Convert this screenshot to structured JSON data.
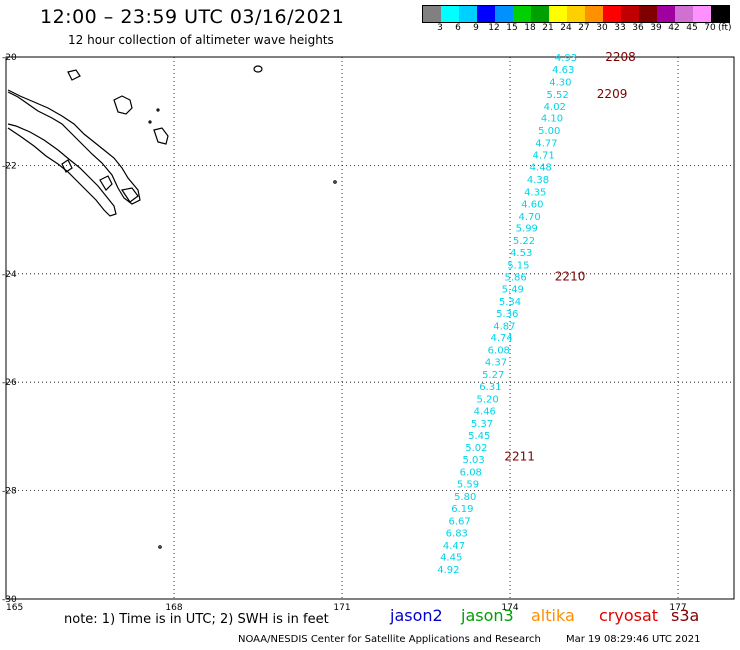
{
  "header": {
    "title": "12:00 – 23:59 UTC 03/16/2021",
    "subtitle": "12 hour collection of altimeter wave heights"
  },
  "colorbar": {
    "colors": [
      "#808080",
      "#00ffff",
      "#00d0ff",
      "#0000ff",
      "#0090ff",
      "#00d000",
      "#00a000",
      "#ffff00",
      "#ffd000",
      "#ff9000",
      "#ff0000",
      "#c00000",
      "#800000",
      "#a000a0",
      "#d070d0",
      "#ff90ff",
      "#000000"
    ],
    "labels": [
      "3",
      "6",
      "9",
      "12",
      "15",
      "18",
      "21",
      "24",
      "27",
      "30",
      "33",
      "36",
      "39",
      "42",
      "45",
      "70"
    ],
    "unit": "(ft)"
  },
  "map": {
    "lon_range": [
      165,
      178
    ],
    "lat_range": [
      -30,
      -20
    ],
    "lat_ticks": [
      {
        "value": -20,
        "label": "-20"
      },
      {
        "value": -22,
        "label": "-22"
      },
      {
        "value": -24,
        "label": "-24"
      },
      {
        "value": -26,
        "label": "-26"
      },
      {
        "value": -28,
        "label": "-28"
      },
      {
        "value": -30,
        "label": "-30"
      }
    ],
    "lon_ticks": [
      {
        "value": 165,
        "label": "165"
      },
      {
        "value": 168,
        "label": "168"
      },
      {
        "value": 171,
        "label": "171"
      },
      {
        "value": 174,
        "label": "174"
      },
      {
        "value": 177,
        "label": "177"
      }
    ],
    "measurements": [
      {
        "lon": 175.0,
        "lat": -20.0,
        "value": "4.93"
      },
      {
        "lon": 174.95,
        "lat": -20.22,
        "value": "4.63"
      },
      {
        "lon": 174.9,
        "lat": -20.45,
        "value": "4.30"
      },
      {
        "lon": 174.85,
        "lat": -20.68,
        "value": "5.52"
      },
      {
        "lon": 174.8,
        "lat": -20.9,
        "value": "4.02"
      },
      {
        "lon": 174.75,
        "lat": -21.12,
        "value": "4.10"
      },
      {
        "lon": 174.7,
        "lat": -21.35,
        "value": "5.00"
      },
      {
        "lon": 174.65,
        "lat": -21.58,
        "value": "4.77"
      },
      {
        "lon": 174.6,
        "lat": -21.8,
        "value": "4.71"
      },
      {
        "lon": 174.55,
        "lat": -22.02,
        "value": "4.48"
      },
      {
        "lon": 174.5,
        "lat": -22.25,
        "value": "4.38"
      },
      {
        "lon": 174.45,
        "lat": -22.48,
        "value": "4.35"
      },
      {
        "lon": 174.4,
        "lat": -22.7,
        "value": "4.60"
      },
      {
        "lon": 174.35,
        "lat": -22.93,
        "value": "4.70"
      },
      {
        "lon": 174.3,
        "lat": -23.15,
        "value": "5.99"
      },
      {
        "lon": 174.25,
        "lat": -23.38,
        "value": "5.22"
      },
      {
        "lon": 174.2,
        "lat": -23.6,
        "value": "4.53"
      },
      {
        "lon": 174.15,
        "lat": -23.83,
        "value": "5.15"
      },
      {
        "lon": 174.1,
        "lat": -24.05,
        "value": "5.86"
      },
      {
        "lon": 174.05,
        "lat": -24.27,
        "value": "5.49"
      },
      {
        "lon": 174.0,
        "lat": -24.5,
        "value": "5.34"
      },
      {
        "lon": 173.95,
        "lat": -24.72,
        "value": "5.36"
      },
      {
        "lon": 173.9,
        "lat": -24.95,
        "value": "4.87"
      },
      {
        "lon": 173.85,
        "lat": -25.17,
        "value": "4.74"
      },
      {
        "lon": 173.8,
        "lat": -25.4,
        "value": "6.08"
      },
      {
        "lon": 173.75,
        "lat": -25.62,
        "value": "4.37"
      },
      {
        "lon": 173.7,
        "lat": -25.85,
        "value": "5.27"
      },
      {
        "lon": 173.65,
        "lat": -26.07,
        "value": "6.31"
      },
      {
        "lon": 173.6,
        "lat": -26.3,
        "value": "5.20"
      },
      {
        "lon": 173.55,
        "lat": -26.52,
        "value": "4.46"
      },
      {
        "lon": 173.5,
        "lat": -26.75,
        "value": "5.37"
      },
      {
        "lon": 173.45,
        "lat": -26.97,
        "value": "5.45"
      },
      {
        "lon": 173.4,
        "lat": -27.2,
        "value": "5.02"
      },
      {
        "lon": 173.35,
        "lat": -27.42,
        "value": "5.03"
      },
      {
        "lon": 173.3,
        "lat": -27.65,
        "value": "6.08"
      },
      {
        "lon": 173.25,
        "lat": -27.87,
        "value": "5.59"
      },
      {
        "lon": 173.2,
        "lat": -28.1,
        "value": "5.80"
      },
      {
        "lon": 173.15,
        "lat": -28.32,
        "value": "6.19"
      },
      {
        "lon": 173.1,
        "lat": -28.55,
        "value": "6.67"
      },
      {
        "lon": 173.05,
        "lat": -28.77,
        "value": "6.83"
      },
      {
        "lon": 173.0,
        "lat": -29.0,
        "value": "4.47"
      },
      {
        "lon": 172.95,
        "lat": -29.22,
        "value": "4.45"
      },
      {
        "lon": 172.9,
        "lat": -29.45,
        "value": "4.92"
      }
    ],
    "hour_labels": [
      {
        "lon": 175.7,
        "lat": -20.0,
        "label": "2208"
      },
      {
        "lon": 175.55,
        "lat": -20.68,
        "label": "2209"
      },
      {
        "lon": 174.8,
        "lat": -24.05,
        "label": "2210"
      },
      {
        "lon": 173.9,
        "lat": -27.37,
        "label": "2211"
      }
    ]
  },
  "footer": {
    "note": "note: 1) Time is in UTC; 2) SWH is in feet",
    "satellites": [
      {
        "name": "jason2",
        "color": "#0000d0"
      },
      {
        "name": "jason3",
        "color": "#00a000"
      },
      {
        "name": "altika",
        "color": "#ff9000"
      },
      {
        "name": "cryosat",
        "color": "#e00000"
      },
      {
        "name": "s3a",
        "color": "#800000"
      }
    ],
    "credit": "NOAA/NESDIS Center for Satellite Applications and Research",
    "timestamp": "Mar 19 08:29:46 UTC 2021"
  }
}
